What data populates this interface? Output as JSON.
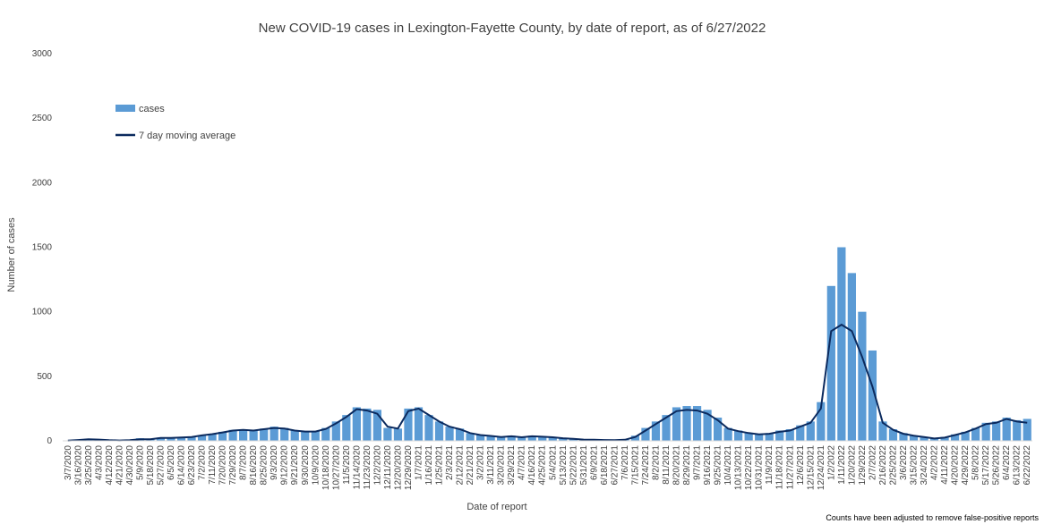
{
  "chart_data": {
    "type": "bar",
    "title": "New COVID-19 cases in Lexington-Fayette County, by date of report, as of 6/27/2022",
    "xlabel": "Date of report",
    "ylabel": "Number of cases",
    "ylim": [
      0,
      3000
    ],
    "yticks": [
      0,
      500,
      1000,
      1500,
      2000,
      2500,
      3000
    ],
    "grid": false,
    "legend_position": "top-left",
    "footnote": "Counts have been adjusted to remove false-positive reports",
    "colors": {
      "bars": "#5b9bd5",
      "line": "#0b2a5e"
    },
    "x_ticks": [
      "3/7/2020",
      "3/16/2020",
      "3/25/2020",
      "4/3/2020",
      "4/12/2020",
      "4/21/2020",
      "4/30/2020",
      "5/9/2020",
      "5/18/2020",
      "5/27/2020",
      "6/5/2020",
      "6/14/2020",
      "6/23/2020",
      "7/2/2020",
      "7/11/2020",
      "7/20/2020",
      "7/29/2020",
      "8/7/2020",
      "8/16/2020",
      "8/25/2020",
      "9/3/2020",
      "9/12/2020",
      "9/21/2020",
      "9/30/2020",
      "10/9/2020",
      "10/18/2020",
      "10/27/2020",
      "11/5/2020",
      "11/14/2020",
      "11/23/2020",
      "12/2/2020",
      "12/11/2020",
      "12/20/2020",
      "12/29/2020",
      "1/7/2021",
      "1/16/2021",
      "1/25/2021",
      "2/3/2021",
      "2/12/2021",
      "2/21/2021",
      "3/2/2021",
      "3/11/2021",
      "3/20/2021",
      "3/29/2021",
      "4/7/2021",
      "4/16/2021",
      "4/25/2021",
      "5/4/2021",
      "5/13/2021",
      "5/22/2021",
      "5/31/2021",
      "6/9/2021",
      "6/18/2021",
      "6/27/2021",
      "7/6/2021",
      "7/15/2021",
      "7/24/2021",
      "8/2/2021",
      "8/11/2021",
      "8/20/2021",
      "8/29/2021",
      "9/7/2021",
      "9/16/2021",
      "9/25/2021",
      "10/4/2021",
      "10/13/2021",
      "10/22/2021",
      "10/31/2021",
      "11/9/2021",
      "11/18/2021",
      "11/27/2021",
      "12/6/2021",
      "12/15/2021",
      "12/24/2021",
      "1/2/2022",
      "1/11/2022",
      "1/20/2022",
      "1/29/2022",
      "2/7/2022",
      "2/16/2022",
      "2/25/2022",
      "3/6/2022",
      "3/15/2022",
      "3/24/2022",
      "4/2/2022",
      "4/11/2022",
      "4/20/2022",
      "4/29/2022",
      "5/8/2022",
      "5/17/2022",
      "5/26/2022",
      "6/4/2022",
      "6/13/2022",
      "6/22/2022"
    ],
    "series": [
      {
        "name": "cases",
        "kind": "bar",
        "note": "approximate daily case counts read at 9-day intervals starting 3/7/2020",
        "values": [
          2,
          8,
          15,
          12,
          5,
          3,
          6,
          20,
          12,
          25,
          22,
          28,
          32,
          45,
          55,
          70,
          85,
          90,
          80,
          95,
          110,
          100,
          80,
          75,
          75,
          100,
          150,
          200,
          260,
          250,
          240,
          100,
          95,
          250,
          260,
          200,
          150,
          110,
          95,
          60,
          45,
          40,
          30,
          40,
          25,
          40,
          35,
          30,
          20,
          15,
          10,
          8,
          6,
          5,
          10,
          40,
          100,
          150,
          200,
          260,
          270,
          270,
          240,
          180,
          100,
          80,
          60,
          50,
          60,
          80,
          90,
          120,
          150,
          300,
          1200,
          1500,
          1300,
          1000,
          700,
          150,
          90,
          60,
          40,
          30,
          20,
          30,
          50,
          70,
          100,
          140,
          150,
          180,
          160,
          170
        ]
      },
      {
        "name": "7 day moving average",
        "kind": "line",
        "values": [
          2,
          6,
          12,
          10,
          5,
          3,
          5,
          12,
          12,
          22,
          22,
          26,
          30,
          42,
          52,
          65,
          80,
          85,
          80,
          90,
          100,
          95,
          80,
          72,
          72,
          92,
          135,
          185,
          245,
          235,
          210,
          110,
          95,
          230,
          250,
          200,
          150,
          110,
          90,
          60,
          45,
          38,
          30,
          35,
          28,
          35,
          32,
          28,
          20,
          15,
          10,
          8,
          6,
          5,
          8,
          30,
          80,
          130,
          180,
          230,
          240,
          235,
          210,
          160,
          95,
          75,
          60,
          50,
          55,
          70,
          80,
          110,
          140,
          250,
          850,
          900,
          850,
          650,
          420,
          140,
          85,
          55,
          40,
          30,
          18,
          25,
          45,
          65,
          95,
          130,
          140,
          170,
          150,
          140
        ]
      }
    ]
  }
}
